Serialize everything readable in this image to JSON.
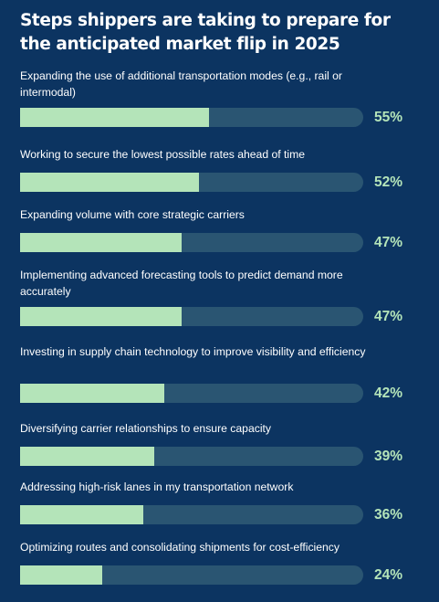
{
  "chart_data": {
    "type": "bar",
    "title": "Steps shippers are taking to prepare for the anticipated market flip in 2025",
    "categories": [
      "Expanding the use of additional transportation modes (e.g., rail or intermodal)",
      "Working to secure the lowest possible rates ahead of time",
      "Expanding volume with core strategic carriers",
      "Implementing advanced forecasting tools to predict demand more accurately",
      "Investing in supply chain technology to improve visibility and efficiency",
      "Diversifying carrier relationships to ensure capacity",
      "Addressing high-risk lanes in my transportation network",
      "Optimizing routes and consolidating shipments for cost-efficiency"
    ],
    "values": [
      55,
      52,
      47,
      47,
      42,
      39,
      36,
      24
    ],
    "value_labels": [
      "55%",
      "52%",
      "47%",
      "47%",
      "42%",
      "39%",
      "36%",
      "24%"
    ],
    "xlim": [
      0,
      100
    ],
    "orientation": "horizontal",
    "grid": false,
    "colors": {
      "background": "#0c3461",
      "bar": "#b4e4b9",
      "track": "#2a5572",
      "label": "#ffffff",
      "value": "#b4e4b9"
    }
  }
}
